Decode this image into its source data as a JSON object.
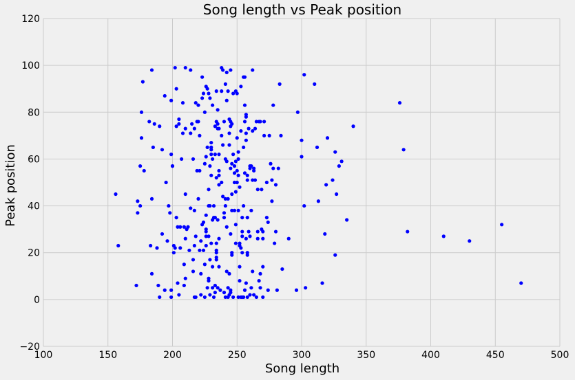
{
  "chart_data": {
    "type": "scatter",
    "title": "Song length vs Peak position",
    "xlabel": "Song length",
    "ylabel": "Peak position",
    "xlim": [
      100,
      500
    ],
    "ylim": [
      -20,
      120
    ],
    "xticks": [
      100,
      150,
      200,
      250,
      300,
      350,
      400,
      450,
      500
    ],
    "yticks": [
      -20,
      0,
      20,
      40,
      60,
      80,
      100,
      120
    ],
    "grid": true,
    "marker_color": "#0000ff",
    "background_color": "#f0f0f0",
    "grid_color": "#cbcbcb",
    "points": [
      [
        156,
        45
      ],
      [
        158,
        23
      ],
      [
        172,
        6
      ],
      [
        173,
        37
      ],
      [
        173,
        42
      ],
      [
        175,
        57
      ],
      [
        175,
        40
      ],
      [
        176,
        69
      ],
      [
        176,
        80
      ],
      [
        177,
        93
      ],
      [
        178,
        55
      ],
      [
        182,
        76
      ],
      [
        183,
        23
      ],
      [
        184,
        43
      ],
      [
        184,
        11
      ],
      [
        184,
        98
      ],
      [
        185,
        65
      ],
      [
        186,
        75
      ],
      [
        188,
        22
      ],
      [
        189,
        6
      ],
      [
        190,
        74
      ],
      [
        190,
        1
      ],
      [
        192,
        64
      ],
      [
        192,
        28
      ],
      [
        194,
        4
      ],
      [
        194,
        87
      ],
      [
        195,
        50
      ],
      [
        196,
        25
      ],
      [
        197,
        40
      ],
      [
        198,
        37
      ],
      [
        199,
        1
      ],
      [
        199,
        4
      ],
      [
        199,
        62
      ],
      [
        199,
        85
      ],
      [
        200,
        57
      ],
      [
        200,
        57
      ],
      [
        201,
        23
      ],
      [
        201,
        20
      ],
      [
        202,
        99
      ],
      [
        202,
        22
      ],
      [
        203,
        74
      ],
      [
        203,
        90
      ],
      [
        203,
        35
      ],
      [
        204,
        7
      ],
      [
        204,
        31
      ],
      [
        205,
        2
      ],
      [
        205,
        75
      ],
      [
        205,
        77
      ],
      [
        206,
        22
      ],
      [
        206,
        31
      ],
      [
        207,
        60
      ],
      [
        208,
        71
      ],
      [
        208,
        84
      ],
      [
        209,
        31
      ],
      [
        209,
        15
      ],
      [
        209,
        6
      ],
      [
        210,
        73
      ],
      [
        210,
        26
      ],
      [
        210,
        45
      ],
      [
        210,
        9
      ],
      [
        210,
        99
      ],
      [
        211,
        30
      ],
      [
        212,
        31
      ],
      [
        213,
        21
      ],
      [
        214,
        71
      ],
      [
        214,
        98
      ],
      [
        214,
        39
      ],
      [
        215,
        75
      ],
      [
        216,
        17
      ],
      [
        216,
        12
      ],
      [
        216,
        60
      ],
      [
        217,
        1
      ],
      [
        217,
        38
      ],
      [
        217,
        73
      ],
      [
        217,
        23
      ],
      [
        218,
        84
      ],
      [
        218,
        27
      ],
      [
        218,
        1
      ],
      [
        219,
        76
      ],
      [
        219,
        55
      ],
      [
        220,
        76
      ],
      [
        220,
        43
      ],
      [
        220,
        83
      ],
      [
        221,
        21
      ],
      [
        221,
        55
      ],
      [
        221,
        70
      ],
      [
        222,
        11
      ],
      [
        222,
        25
      ],
      [
        222,
        2
      ],
      [
        223,
        32
      ],
      [
        223,
        86
      ],
      [
        223,
        95
      ],
      [
        224,
        88
      ],
      [
        224,
        33
      ],
      [
        224,
        21
      ],
      [
        225,
        80
      ],
      [
        225,
        58
      ],
      [
        225,
        15
      ],
      [
        225,
        1
      ],
      [
        226,
        61
      ],
      [
        226,
        91
      ],
      [
        226,
        36
      ],
      [
        226,
        29
      ],
      [
        226,
        27
      ],
      [
        226,
        30
      ],
      [
        226,
        23
      ],
      [
        227,
        65
      ],
      [
        227,
        90
      ],
      [
        227,
        5
      ],
      [
        228,
        88
      ],
      [
        228,
        47
      ],
      [
        228,
        40
      ],
      [
        228,
        27
      ],
      [
        228,
        9
      ],
      [
        228,
        8
      ],
      [
        229,
        2
      ],
      [
        229,
        86
      ],
      [
        229,
        57
      ],
      [
        229,
        40
      ],
      [
        229,
        17
      ],
      [
        230,
        67
      ],
      [
        230,
        62
      ],
      [
        230,
        64
      ],
      [
        230,
        53
      ],
      [
        230,
        24
      ],
      [
        230,
        65
      ],
      [
        231,
        14
      ],
      [
        231,
        83
      ],
      [
        231,
        60
      ],
      [
        231,
        34
      ],
      [
        231,
        5
      ],
      [
        232,
        1
      ],
      [
        232,
        40
      ],
      [
        232,
        35
      ],
      [
        233,
        3
      ],
      [
        233,
        74
      ],
      [
        233,
        62
      ],
      [
        233,
        35
      ],
      [
        233,
        6
      ],
      [
        234,
        89
      ],
      [
        234,
        76
      ],
      [
        234,
        52
      ],
      [
        234,
        21
      ],
      [
        234,
        20
      ],
      [
        234,
        18
      ],
      [
        234,
        24
      ],
      [
        234,
        17
      ],
      [
        235,
        75
      ],
      [
        235,
        73
      ],
      [
        235,
        81
      ],
      [
        235,
        5
      ],
      [
        235,
        34
      ],
      [
        236,
        73
      ],
      [
        236,
        49
      ],
      [
        236,
        55
      ],
      [
        236,
        62
      ],
      [
        236,
        53
      ],
      [
        236,
        26
      ],
      [
        236,
        14
      ],
      [
        237,
        4
      ],
      [
        238,
        99
      ],
      [
        238,
        89
      ],
      [
        238,
        70
      ],
      [
        238,
        50
      ],
      [
        239,
        66
      ],
      [
        239,
        44
      ],
      [
        239,
        98
      ],
      [
        240,
        76
      ],
      [
        240,
        37
      ],
      [
        240,
        35
      ],
      [
        240,
        3
      ],
      [
        241,
        92
      ],
      [
        241,
        40
      ],
      [
        241,
        1
      ],
      [
        241,
        60
      ],
      [
        241,
        43
      ],
      [
        242,
        85
      ],
      [
        242,
        97
      ],
      [
        242,
        59
      ],
      [
        242,
        31
      ],
      [
        242,
        12
      ],
      [
        243,
        5
      ],
      [
        243,
        89
      ],
      [
        243,
        43
      ],
      [
        243,
        1
      ],
      [
        244,
        77
      ],
      [
        244,
        2
      ],
      [
        244,
        71
      ],
      [
        244,
        66
      ],
      [
        244,
        11
      ],
      [
        245,
        56
      ],
      [
        245,
        98
      ],
      [
        245,
        76
      ],
      [
        245,
        74
      ],
      [
        245,
        3
      ],
      [
        245,
        4
      ],
      [
        245,
        28
      ],
      [
        246,
        38
      ],
      [
        246,
        45
      ],
      [
        246,
        20
      ],
      [
        246,
        75
      ],
      [
        246,
        58
      ],
      [
        246,
        19
      ],
      [
        247,
        62
      ],
      [
        247,
        88
      ],
      [
        247,
        1
      ],
      [
        248,
        57
      ],
      [
        248,
        50
      ],
      [
        248,
        54
      ],
      [
        248,
        38
      ],
      [
        249,
        89
      ],
      [
        249,
        59
      ],
      [
        249,
        46
      ],
      [
        249,
        24
      ],
      [
        249,
        32
      ],
      [
        250,
        55
      ],
      [
        250,
        88
      ],
      [
        250,
        50
      ],
      [
        250,
        69
      ],
      [
        251,
        1
      ],
      [
        251,
        60
      ],
      [
        251,
        63
      ],
      [
        251,
        53
      ],
      [
        251,
        38
      ],
      [
        252,
        24
      ],
      [
        252,
        23
      ],
      [
        252,
        48
      ],
      [
        252,
        14
      ],
      [
        252,
        8
      ],
      [
        253,
        1
      ],
      [
        253,
        22
      ],
      [
        253,
        91
      ],
      [
        253,
        72
      ],
      [
        254,
        35
      ],
      [
        254,
        29
      ],
      [
        254,
        1
      ],
      [
        254,
        20
      ],
      [
        254,
        27
      ],
      [
        255,
        95
      ],
      [
        255,
        65
      ],
      [
        255,
        40
      ],
      [
        255,
        1
      ],
      [
        256,
        76
      ],
      [
        256,
        54
      ],
      [
        256,
        4
      ],
      [
        256,
        95
      ],
      [
        256,
        83
      ],
      [
        257,
        7
      ],
      [
        257,
        78
      ],
      [
        257,
        71
      ],
      [
        257,
        79
      ],
      [
        257,
        26
      ],
      [
        257,
        68
      ],
      [
        258,
        20
      ],
      [
        258,
        19
      ],
      [
        258,
        35
      ],
      [
        258,
        53
      ],
      [
        258,
        51
      ],
      [
        258,
        1
      ],
      [
        259,
        73
      ],
      [
        259,
        29
      ],
      [
        260,
        2
      ],
      [
        260,
        57
      ],
      [
        260,
        56
      ],
      [
        260,
        27
      ],
      [
        261,
        57
      ],
      [
        261,
        38
      ],
      [
        261,
        5
      ],
      [
        262,
        72
      ],
      [
        262,
        51
      ],
      [
        262,
        12
      ],
      [
        262,
        98
      ],
      [
        263,
        2
      ],
      [
        263,
        56
      ],
      [
        263,
        55
      ],
      [
        264,
        73
      ],
      [
        264,
        51
      ],
      [
        265,
        1
      ],
      [
        265,
        76
      ],
      [
        266,
        29
      ],
      [
        266,
        26
      ],
      [
        266,
        47
      ],
      [
        267,
        76
      ],
      [
        267,
        8
      ],
      [
        268,
        76
      ],
      [
        268,
        11
      ],
      [
        268,
        5
      ],
      [
        269,
        30
      ],
      [
        269,
        47
      ],
      [
        270,
        1
      ],
      [
        270,
        14
      ],
      [
        270,
        26
      ],
      [
        270,
        29
      ],
      [
        271,
        70
      ],
      [
        271,
        76
      ],
      [
        273,
        35
      ],
      [
        273,
        50
      ],
      [
        274,
        4
      ],
      [
        274,
        33
      ],
      [
        275,
        70
      ],
      [
        276,
        58
      ],
      [
        277,
        42
      ],
      [
        277,
        51
      ],
      [
        278,
        83
      ],
      [
        278,
        56
      ],
      [
        279,
        24
      ],
      [
        280,
        29
      ],
      [
        280,
        49
      ],
      [
        281,
        4
      ],
      [
        282,
        56
      ],
      [
        283,
        92
      ],
      [
        284,
        70
      ],
      [
        285,
        13
      ],
      [
        290,
        26
      ],
      [
        296,
        4
      ],
      [
        297,
        80
      ],
      [
        300,
        68
      ],
      [
        300,
        61
      ],
      [
        302,
        96
      ],
      [
        302,
        40
      ],
      [
        303,
        5
      ],
      [
        310,
        92
      ],
      [
        312,
        65
      ],
      [
        313,
        42
      ],
      [
        316,
        7
      ],
      [
        318,
        28
      ],
      [
        319,
        49
      ],
      [
        320,
        69
      ],
      [
        324,
        51
      ],
      [
        326,
        63
      ],
      [
        326,
        19
      ],
      [
        327,
        45
      ],
      [
        329,
        57
      ],
      [
        331,
        59
      ],
      [
        335,
        34
      ],
      [
        340,
        74
      ],
      [
        376,
        84
      ],
      [
        379,
        64
      ],
      [
        382,
        29
      ],
      [
        410,
        27
      ],
      [
        430,
        25
      ],
      [
        455,
        32
      ],
      [
        470,
        7
      ]
    ]
  }
}
